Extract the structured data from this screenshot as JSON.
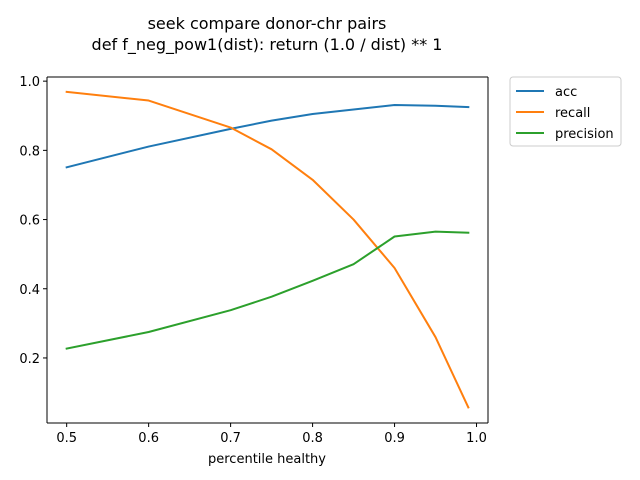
{
  "chart_data": {
    "type": "line",
    "title": "seek compare donor-chr pairs\ndef f_neg_pow1(dist): return (1.0 / dist) ** 1",
    "title_lines": [
      "seek compare donor-chr pairs",
      "def f_neg_pow1(dist): return (1.0 / dist) ** 1"
    ],
    "xlabel": "percentile healthy",
    "ylabel": "",
    "xlim": [
      0.476,
      1.014
    ],
    "ylim": [
      0.012,
      1.012
    ],
    "xticks": [
      0.5,
      0.6,
      0.7,
      0.8,
      0.9,
      1.0
    ],
    "xtick_labels": [
      "0.5",
      "0.6",
      "0.7",
      "0.8",
      "0.9",
      "1.0"
    ],
    "yticks": [
      0.2,
      0.4,
      0.6,
      0.8,
      1.0
    ],
    "ytick_labels": [
      "0.2",
      "0.4",
      "0.6",
      "0.8",
      "1.0"
    ],
    "grid": false,
    "legend_position": "outside-top-right",
    "x": [
      0.5,
      0.6,
      0.7,
      0.75,
      0.8,
      0.85,
      0.9,
      0.95,
      0.99
    ],
    "series": [
      {
        "name": "acc",
        "color": "#1f77b4",
        "values": [
          0.751,
          0.811,
          0.862,
          0.886,
          0.905,
          0.918,
          0.931,
          0.929,
          0.925
        ]
      },
      {
        "name": "recall",
        "color": "#ff7f0e",
        "values": [
          0.969,
          0.944,
          0.866,
          0.803,
          0.715,
          0.6,
          0.46,
          0.26,
          0.057
        ]
      },
      {
        "name": "precision",
        "color": "#2ca02c",
        "values": [
          0.227,
          0.275,
          0.338,
          0.377,
          0.423,
          0.471,
          0.551,
          0.565,
          0.562
        ]
      }
    ]
  }
}
